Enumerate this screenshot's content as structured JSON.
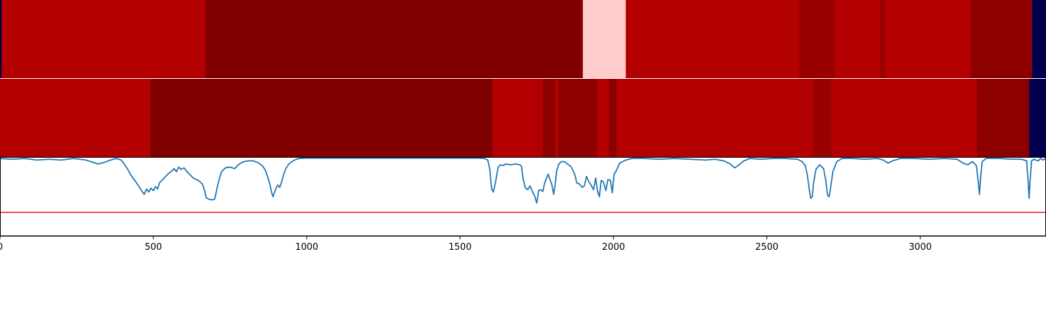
{
  "chart_data": {
    "type": "heatmap",
    "title": "",
    "xlabel": "",
    "ylabel": "",
    "xlim": [
      0,
      3410
    ],
    "grid": false,
    "legend": "none",
    "xticks": [
      {
        "value": 0,
        "label": "0"
      },
      {
        "value": 500,
        "label": "500"
      },
      {
        "value": 1000,
        "label": "1000"
      },
      {
        "value": 1500,
        "label": "1500"
      },
      {
        "value": 2000,
        "label": "2000"
      },
      {
        "value": 2500,
        "label": "2500"
      },
      {
        "value": 3000,
        "label": "3000"
      }
    ],
    "tracks": [
      {
        "segments": [
          {
            "start": 0,
            "end": 5,
            "value": -1.0
          },
          {
            "start": 5,
            "end": 670,
            "value": 0.8
          },
          {
            "start": 670,
            "end": 1900,
            "value": 1.0
          },
          {
            "start": 1900,
            "end": 2040,
            "value": 0.1
          },
          {
            "start": 2040,
            "end": 2605,
            "value": 0.8
          },
          {
            "start": 2605,
            "end": 2720,
            "value": 0.9
          },
          {
            "start": 2720,
            "end": 2870,
            "value": 0.8
          },
          {
            "start": 2870,
            "end": 2885,
            "value": 0.9
          },
          {
            "start": 2885,
            "end": 3165,
            "value": 0.8
          },
          {
            "start": 3165,
            "end": 3365,
            "value": 0.95
          },
          {
            "start": 3365,
            "end": 3410,
            "value": -1.0
          }
        ]
      },
      {
        "segments": [
          {
            "start": 0,
            "end": 490,
            "value": 0.8
          },
          {
            "start": 490,
            "end": 1605,
            "value": 1.0
          },
          {
            "start": 1605,
            "end": 1770,
            "value": 0.8
          },
          {
            "start": 1770,
            "end": 1810,
            "value": 0.95
          },
          {
            "start": 1810,
            "end": 1820,
            "value": 0.8
          },
          {
            "start": 1820,
            "end": 1945,
            "value": 0.95
          },
          {
            "start": 1945,
            "end": 1985,
            "value": 0.8
          },
          {
            "start": 1985,
            "end": 2010,
            "value": 0.95
          },
          {
            "start": 2010,
            "end": 2650,
            "value": 0.8
          },
          {
            "start": 2650,
            "end": 2710,
            "value": 0.9
          },
          {
            "start": 2710,
            "end": 3185,
            "value": 0.8
          },
          {
            "start": 3185,
            "end": 3355,
            "value": 0.95
          },
          {
            "start": 3355,
            "end": 3410,
            "value": -1.0
          }
        ]
      }
    ],
    "line": {
      "color": "#1f77b4",
      "ylim": [
        0,
        1
      ],
      "points": [
        [
          0,
          0.99
        ],
        [
          40,
          0.98
        ],
        [
          80,
          0.99
        ],
        [
          120,
          0.97
        ],
        [
          160,
          0.98
        ],
        [
          200,
          0.97
        ],
        [
          240,
          0.99
        ],
        [
          280,
          0.97
        ],
        [
          320,
          0.92
        ],
        [
          340,
          0.94
        ],
        [
          360,
          0.97
        ],
        [
          380,
          0.99
        ],
        [
          395,
          0.97
        ],
        [
          405,
          0.92
        ],
        [
          415,
          0.86
        ],
        [
          425,
          0.79
        ],
        [
          435,
          0.73
        ],
        [
          445,
          0.68
        ],
        [
          455,
          0.62
        ],
        [
          463,
          0.57
        ],
        [
          470,
          0.53
        ],
        [
          478,
          0.6
        ],
        [
          485,
          0.56
        ],
        [
          492,
          0.61
        ],
        [
          500,
          0.58
        ],
        [
          507,
          0.63
        ],
        [
          514,
          0.6
        ],
        [
          520,
          0.68
        ],
        [
          530,
          0.72
        ],
        [
          540,
          0.76
        ],
        [
          550,
          0.8
        ],
        [
          560,
          0.83
        ],
        [
          568,
          0.86
        ],
        [
          575,
          0.82
        ],
        [
          583,
          0.88
        ],
        [
          590,
          0.85
        ],
        [
          600,
          0.87
        ],
        [
          610,
          0.82
        ],
        [
          620,
          0.78
        ],
        [
          630,
          0.74
        ],
        [
          640,
          0.72
        ],
        [
          650,
          0.7
        ],
        [
          660,
          0.66
        ],
        [
          667,
          0.58
        ],
        [
          672,
          0.49
        ],
        [
          680,
          0.47
        ],
        [
          690,
          0.46
        ],
        [
          700,
          0.47
        ],
        [
          707,
          0.6
        ],
        [
          715,
          0.73
        ],
        [
          722,
          0.82
        ],
        [
          735,
          0.87
        ],
        [
          750,
          0.88
        ],
        [
          765,
          0.86
        ],
        [
          780,
          0.92
        ],
        [
          795,
          0.95
        ],
        [
          810,
          0.96
        ],
        [
          825,
          0.96
        ],
        [
          840,
          0.94
        ],
        [
          855,
          0.9
        ],
        [
          865,
          0.84
        ],
        [
          872,
          0.76
        ],
        [
          880,
          0.66
        ],
        [
          885,
          0.56
        ],
        [
          890,
          0.5
        ],
        [
          895,
          0.56
        ],
        [
          900,
          0.61
        ],
        [
          906,
          0.65
        ],
        [
          912,
          0.62
        ],
        [
          918,
          0.69
        ],
        [
          925,
          0.79
        ],
        [
          932,
          0.86
        ],
        [
          940,
          0.91
        ],
        [
          948,
          0.94
        ],
        [
          960,
          0.97
        ],
        [
          975,
          0.99
        ],
        [
          1000,
          0.995
        ],
        [
          1100,
          0.995
        ],
        [
          1200,
          0.995
        ],
        [
          1300,
          0.995
        ],
        [
          1400,
          0.995
        ],
        [
          1500,
          0.995
        ],
        [
          1560,
          0.995
        ],
        [
          1580,
          0.99
        ],
        [
          1590,
          0.97
        ],
        [
          1597,
          0.85
        ],
        [
          1600,
          0.7
        ],
        [
          1603,
          0.6
        ],
        [
          1608,
          0.56
        ],
        [
          1614,
          0.66
        ],
        [
          1620,
          0.79
        ],
        [
          1624,
          0.88
        ],
        [
          1632,
          0.91
        ],
        [
          1640,
          0.9
        ],
        [
          1650,
          0.92
        ],
        [
          1665,
          0.91
        ],
        [
          1680,
          0.92
        ],
        [
          1695,
          0.91
        ],
        [
          1700,
          0.89
        ],
        [
          1705,
          0.74
        ],
        [
          1712,
          0.62
        ],
        [
          1720,
          0.59
        ],
        [
          1728,
          0.64
        ],
        [
          1735,
          0.57
        ],
        [
          1742,
          0.52
        ],
        [
          1750,
          0.42
        ],
        [
          1756,
          0.58
        ],
        [
          1762,
          0.59
        ],
        [
          1770,
          0.57
        ],
        [
          1775,
          0.67
        ],
        [
          1780,
          0.72
        ],
        [
          1787,
          0.79
        ],
        [
          1795,
          0.7
        ],
        [
          1800,
          0.64
        ],
        [
          1805,
          0.53
        ],
        [
          1810,
          0.66
        ],
        [
          1815,
          0.84
        ],
        [
          1822,
          0.92
        ],
        [
          1830,
          0.95
        ],
        [
          1840,
          0.95
        ],
        [
          1850,
          0.92
        ],
        [
          1860,
          0.89
        ],
        [
          1868,
          0.84
        ],
        [
          1875,
          0.77
        ],
        [
          1880,
          0.68
        ],
        [
          1890,
          0.66
        ],
        [
          1898,
          0.62
        ],
        [
          1905,
          0.64
        ],
        [
          1912,
          0.76
        ],
        [
          1920,
          0.69
        ],
        [
          1927,
          0.65
        ],
        [
          1935,
          0.59
        ],
        [
          1942,
          0.74
        ],
        [
          1948,
          0.57
        ],
        [
          1954,
          0.5
        ],
        [
          1960,
          0.71
        ],
        [
          1967,
          0.69
        ],
        [
          1975,
          0.58
        ],
        [
          1982,
          0.72
        ],
        [
          1990,
          0.71
        ],
        [
          1996,
          0.55
        ],
        [
          2002,
          0.79
        ],
        [
          2010,
          0.84
        ],
        [
          2020,
          0.93
        ],
        [
          2040,
          0.97
        ],
        [
          2060,
          0.99
        ],
        [
          2100,
          0.99
        ],
        [
          2150,
          0.98
        ],
        [
          2200,
          0.99
        ],
        [
          2250,
          0.98
        ],
        [
          2300,
          0.97
        ],
        [
          2330,
          0.98
        ],
        [
          2360,
          0.96
        ],
        [
          2380,
          0.92
        ],
        [
          2395,
          0.87
        ],
        [
          2410,
          0.91
        ],
        [
          2425,
          0.96
        ],
        [
          2445,
          0.99
        ],
        [
          2480,
          0.98
        ],
        [
          2520,
          0.99
        ],
        [
          2560,
          0.99
        ],
        [
          2600,
          0.98
        ],
        [
          2615,
          0.95
        ],
        [
          2625,
          0.9
        ],
        [
          2632,
          0.78
        ],
        [
          2638,
          0.6
        ],
        [
          2643,
          0.48
        ],
        [
          2648,
          0.5
        ],
        [
          2652,
          0.67
        ],
        [
          2660,
          0.85
        ],
        [
          2672,
          0.91
        ],
        [
          2685,
          0.86
        ],
        [
          2692,
          0.71
        ],
        [
          2698,
          0.52
        ],
        [
          2703,
          0.5
        ],
        [
          2708,
          0.62
        ],
        [
          2715,
          0.82
        ],
        [
          2728,
          0.95
        ],
        [
          2745,
          0.99
        ],
        [
          2780,
          0.99
        ],
        [
          2820,
          0.98
        ],
        [
          2860,
          0.99
        ],
        [
          2880,
          0.97
        ],
        [
          2895,
          0.93
        ],
        [
          2910,
          0.96
        ],
        [
          2935,
          0.99
        ],
        [
          2980,
          0.99
        ],
        [
          3030,
          0.98
        ],
        [
          3080,
          0.99
        ],
        [
          3120,
          0.98
        ],
        [
          3140,
          0.93
        ],
        [
          3155,
          0.91
        ],
        [
          3170,
          0.95
        ],
        [
          3183,
          0.9
        ],
        [
          3189,
          0.7
        ],
        [
          3193,
          0.53
        ],
        [
          3197,
          0.75
        ],
        [
          3202,
          0.95
        ],
        [
          3215,
          0.99
        ],
        [
          3260,
          0.99
        ],
        [
          3300,
          0.98
        ],
        [
          3330,
          0.98
        ],
        [
          3347,
          0.96
        ],
        [
          3352,
          0.68
        ],
        [
          3355,
          0.48
        ],
        [
          3358,
          0.7
        ],
        [
          3363,
          0.96
        ],
        [
          3370,
          0.98
        ],
        [
          3385,
          0.96
        ],
        [
          3392,
          0.99
        ],
        [
          3400,
          0.97
        ],
        [
          3410,
          0.99
        ]
      ]
    },
    "threshold": {
      "value": 0.3,
      "color": "#ff0000"
    }
  }
}
